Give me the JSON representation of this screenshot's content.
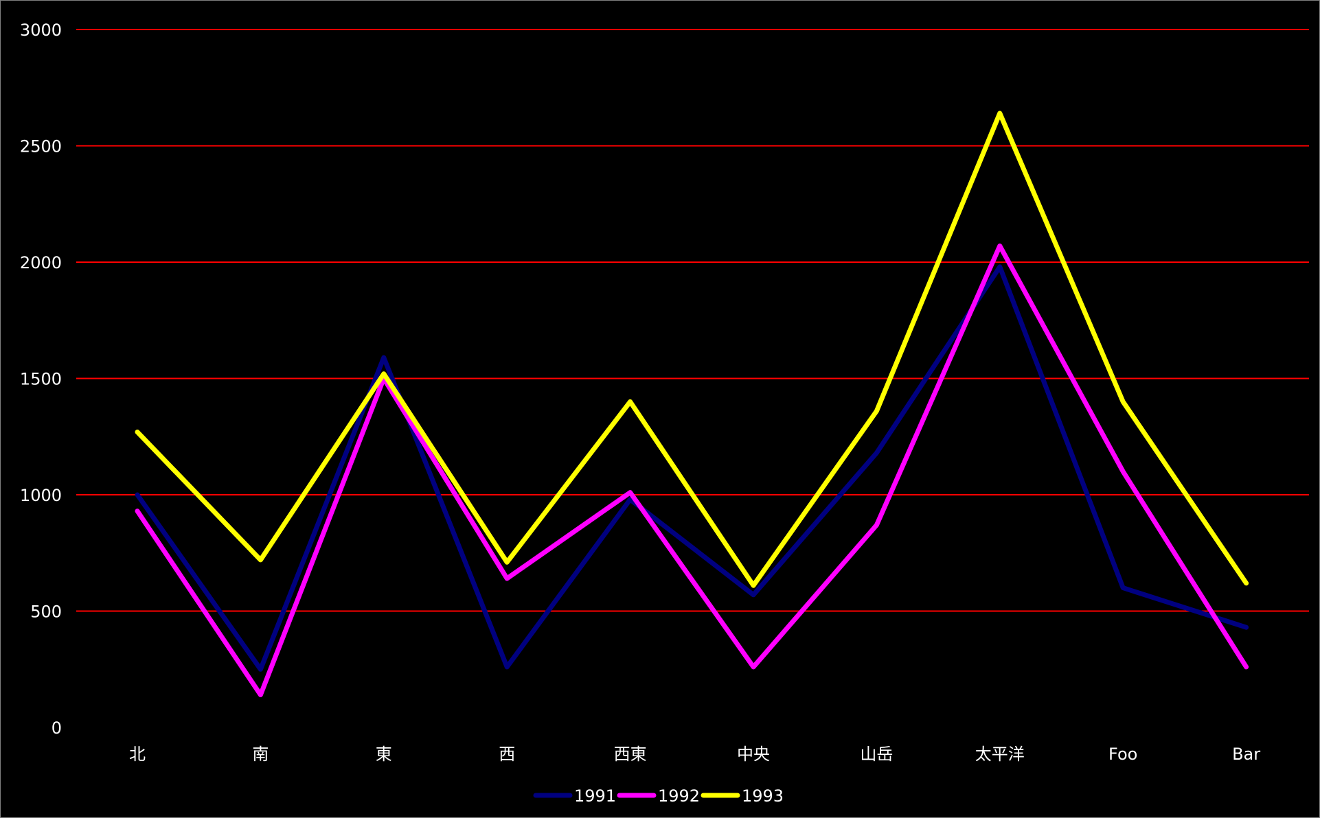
{
  "chart_data": {
    "type": "line",
    "title": "",
    "xlabel": "",
    "ylabel": "",
    "categories": [
      "北",
      "南",
      "東",
      "西",
      "西東",
      "中央",
      "山岳",
      "太平洋",
      "Foo",
      "Bar"
    ],
    "ylim": [
      0,
      3000
    ],
    "yticks": [
      0,
      500,
      1000,
      1500,
      2000,
      2500,
      3000
    ],
    "grid": true,
    "grid_color": "#ff0000",
    "background": "#000000",
    "legend_position": "bottom",
    "series": [
      {
        "name": "1991",
        "color": "#000080",
        "values": [
          1000,
          250,
          1590,
          260,
          980,
          570,
          1180,
          1980,
          600,
          430
        ]
      },
      {
        "name": "1992",
        "color": "#ff00ff",
        "values": [
          930,
          140,
          1500,
          640,
          1010,
          260,
          870,
          2070,
          1100,
          260
        ]
      },
      {
        "name": "1993",
        "color": "#ffff00",
        "values": [
          1270,
          720,
          1520,
          710,
          1400,
          610,
          1360,
          2640,
          1400,
          620
        ]
      }
    ]
  }
}
